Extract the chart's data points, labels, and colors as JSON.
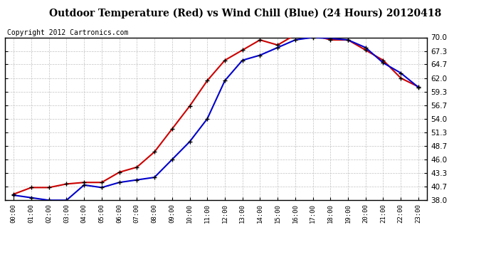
{
  "title": "Outdoor Temperature (Red) vs Wind Chill (Blue) (24 Hours) 20120418",
  "copyright": "Copyright 2012 Cartronics.com",
  "hours": [
    0,
    1,
    2,
    3,
    4,
    5,
    6,
    7,
    8,
    9,
    10,
    11,
    12,
    13,
    14,
    15,
    16,
    17,
    18,
    19,
    20,
    21,
    22,
    23
  ],
  "temp_red": [
    39.2,
    40.5,
    40.5,
    41.2,
    41.5,
    41.5,
    43.5,
    44.5,
    47.5,
    52.0,
    56.5,
    61.5,
    65.5,
    67.5,
    69.5,
    68.5,
    70.5,
    70.5,
    69.5,
    69.5,
    67.5,
    65.5,
    62.0,
    60.3
  ],
  "wind_chill_blue": [
    39.0,
    38.5,
    38.0,
    38.0,
    41.0,
    40.5,
    41.5,
    42.0,
    42.5,
    46.0,
    49.5,
    54.0,
    61.5,
    65.5,
    66.5,
    68.0,
    69.5,
    70.0,
    69.8,
    69.5,
    68.0,
    65.0,
    63.0,
    60.2
  ],
  "ylim": [
    38.0,
    70.0
  ],
  "yticks": [
    38.0,
    40.7,
    43.3,
    46.0,
    48.7,
    51.3,
    54.0,
    56.7,
    59.3,
    62.0,
    64.7,
    67.3,
    70.0
  ],
  "background_color": "#ffffff",
  "plot_bg_color": "#ffffff",
  "grid_color": "#bbbbbb",
  "red_color": "#cc0000",
  "blue_color": "#0000cc",
  "title_fontsize": 10,
  "copyright_fontsize": 7
}
